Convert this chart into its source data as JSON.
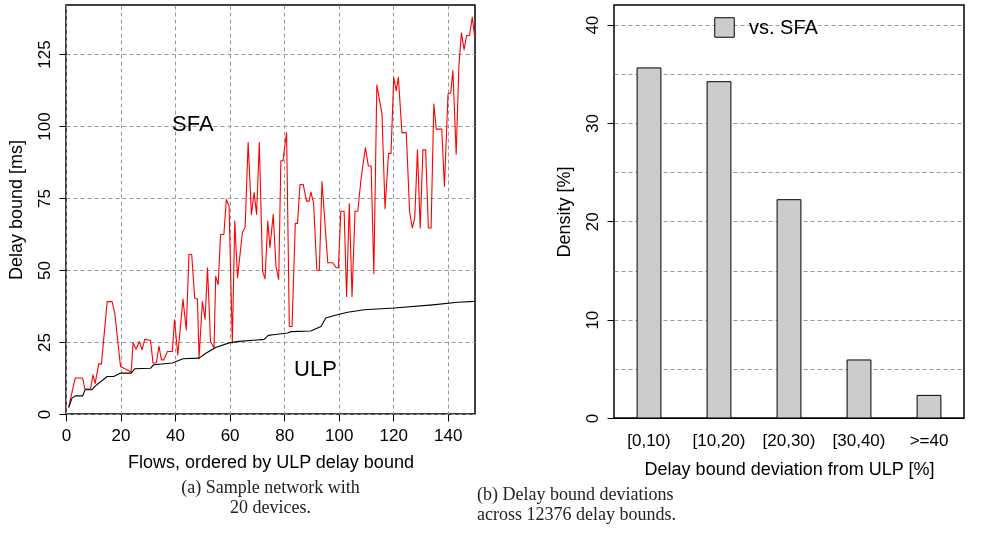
{
  "chart_data": [
    {
      "type": "line",
      "xlabel": "Flows, ordered by ULP delay bound",
      "ylabel": "Delay bound [ms]",
      "xlim": [
        0,
        150
      ],
      "ylim": [
        0,
        142
      ],
      "xticks": [
        0,
        20,
        40,
        60,
        80,
        100,
        120,
        140
      ],
      "yticks": [
        0,
        25,
        50,
        75,
        100,
        125
      ],
      "grid": true,
      "series": [
        {
          "name": "SFA",
          "color": "#ff0000",
          "x": [
            1,
            3.4,
            6.1,
            6.9,
            9,
            9.9,
            10.7,
            12,
            13,
            15.1,
            16.9,
            17.9,
            20,
            23.9,
            24.6,
            25.7,
            26.9,
            27.9,
            28.9,
            31,
            31.9,
            33.1,
            34.1,
            35,
            35.9,
            37.2,
            39,
            39.8,
            41,
            42.9,
            44.1,
            45.1,
            46.1,
            47.2,
            48.2,
            48.8,
            50,
            51,
            51.9,
            53,
            54.3,
            54.9,
            55.8,
            56.7,
            57.9,
            58.8,
            59.8,
            61,
            61.9,
            62.9,
            64.7,
            65.7,
            66.8,
            68,
            69,
            69.9,
            70.9,
            72.1,
            73,
            74,
            74.8,
            76,
            77,
            78,
            78.8,
            79.6,
            80,
            80.9,
            81.9,
            82.9,
            84.1,
            84.9,
            85.8,
            87,
            88.2,
            89.2,
            89.8,
            90.8,
            92,
            92.9,
            93.9,
            96,
            97.8,
            99.1,
            99.9,
            100.8,
            102,
            102.9,
            103.9,
            104.9,
            106,
            107,
            108.2,
            109.8,
            110.9,
            111.9,
            112.9,
            114,
            115.9,
            117,
            118.3,
            119.2,
            120.2,
            121.1,
            121.9,
            123.2,
            124.8,
            126,
            127,
            127.9,
            128.9,
            129.9,
            130.9,
            131.9,
            132.9,
            133.9,
            134.9,
            135.8,
            137.8,
            138.8,
            140.1,
            141.1,
            141.9,
            143.1,
            144.1,
            145,
            146,
            146.9,
            148,
            149,
            150
          ],
          "values": [
            2.5,
            12.5,
            12.5,
            8.7,
            8.7,
            13.6,
            10.6,
            17.4,
            17.4,
            39,
            39,
            35,
            16.5,
            14.6,
            24.7,
            22.5,
            25.2,
            22.3,
            25.9,
            25.6,
            17.7,
            17.7,
            23.5,
            18.8,
            18.8,
            21.7,
            21.7,
            32.7,
            20.5,
            39.9,
            29.2,
            55.4,
            55.4,
            40.3,
            39.9,
            19.4,
            39,
            32.9,
            50.8,
            25.2,
            22.9,
            47.8,
            44.9,
            62.3,
            62.3,
            74.5,
            72.2,
            24.7,
            67,
            47.3,
            63,
            64.8,
            94.3,
            69.3,
            76.9,
            69.3,
            94.3,
            49.6,
            46.9,
            67,
            57.7,
            69.3,
            51.3,
            46.7,
            87.9,
            87.9,
            91.3,
            97.7,
            30.4,
            30.4,
            66.2,
            66.2,
            79.7,
            79.7,
            73.9,
            73.9,
            77.1,
            73.3,
            49.9,
            49.9,
            80.7,
            52.5,
            52.5,
            50.8,
            50.8,
            70.4,
            70.4,
            40.8,
            73.1,
            40.8,
            70.4,
            70.4,
            81.5,
            92.5,
            86.1,
            86.1,
            48.7,
            114.2,
            104.1,
            71.3,
            90.5,
            90.5,
            116.9,
            112.2,
            116.9,
            97.7,
            97.7,
            70.4,
            64.6,
            68.1,
            91.7,
            64.6,
            91.7,
            91.7,
            64.6,
            64.6,
            107.6,
            98.9,
            98.9,
            79.1,
            111.1,
            111.5,
            119.2,
            90.2,
            120.9,
            132.3,
            126.5,
            131.4,
            131.4,
            137.8,
            130
          ]
        },
        {
          "name": "ULP",
          "color": "#000000",
          "x": [
            1,
            2.2,
            3.4,
            6.1,
            7,
            9.5,
            10.7,
            15.1,
            17.5,
            20,
            23.9,
            25.2,
            31,
            32.2,
            39,
            42.9,
            48.8,
            51.3,
            54.9,
            59.8,
            63.5,
            72.7,
            74.2,
            76,
            81.3,
            82.5,
            89.8,
            93.5,
            95.3,
            98.4,
            103.3,
            109.4,
            120.4,
            134.5,
            143.7,
            150
          ],
          "values": [
            2.2,
            5.5,
            6.3,
            6.3,
            8.4,
            8.4,
            9.7,
            13,
            13,
            14.2,
            14.2,
            15.7,
            15.9,
            17.1,
            17.7,
            19.2,
            19.4,
            21.1,
            23.1,
            24.7,
            25.2,
            25.9,
            27.3,
            27.5,
            28.1,
            28.6,
            28.8,
            30.4,
            33.3,
            34.2,
            35.3,
            36.2,
            36.8,
            37.9,
            38.8,
            39.1
          ]
        }
      ],
      "annotations": [
        "(a) Sample network with\n20 devices."
      ]
    },
    {
      "type": "bar",
      "xlabel": "Delay bound deviation from ULP [%]",
      "ylabel": "Density [%]",
      "categories": [
        "[0,10)",
        "[10,20)",
        "[20,30)",
        "[30,40)",
        ">=40"
      ],
      "ylim": [
        0,
        42
      ],
      "yticks": [
        0,
        {
          "value": 5,
          "label": null
        },
        10,
        {
          "value": 15,
          "label": null
        },
        20,
        {
          "value": 25,
          "label": null
        },
        30,
        {
          "value": 35,
          "label": null
        },
        40
      ],
      "grid": "y",
      "legend": "top",
      "series": [
        {
          "name": "vs. SFA",
          "color": "#cccccc",
          "values": [
            35.6,
            34.2,
            22.2,
            5.9,
            2.3
          ]
        }
      ],
      "annotations": [
        "(b) Delay bound deviations\nacross 12376 delay bounds."
      ]
    }
  ]
}
